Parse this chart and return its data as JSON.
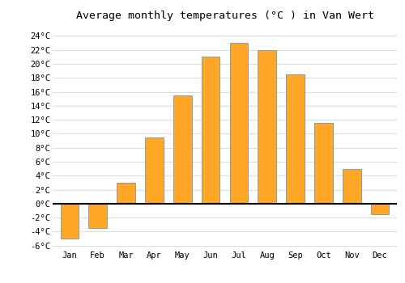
{
  "months": [
    "Jan",
    "Feb",
    "Mar",
    "Apr",
    "May",
    "Jun",
    "Jul",
    "Aug",
    "Sep",
    "Oct",
    "Nov",
    "Dec"
  ],
  "values": [
    -5.0,
    -3.5,
    3.0,
    9.5,
    15.5,
    21.0,
    23.0,
    22.0,
    18.5,
    11.5,
    5.0,
    -1.5
  ],
  "bar_color": "#FFA726",
  "bar_edge_color": "#999999",
  "title": "Average monthly temperatures (°C ) in Van Wert",
  "ylim": [
    -6.5,
    25.5
  ],
  "yticks": [
    -6,
    -4,
    -2,
    0,
    2,
    4,
    6,
    8,
    10,
    12,
    14,
    16,
    18,
    20,
    22,
    24
  ],
  "ytick_labels": [
    "-6°C",
    "-4°C",
    "-2°C",
    "0°C",
    "2°C",
    "4°C",
    "6°C",
    "8°C",
    "10°C",
    "12°C",
    "14°C",
    "16°C",
    "18°C",
    "20°C",
    "22°C",
    "24°C"
  ],
  "background_color": "#ffffff",
  "grid_color": "#dddddd",
  "title_fontsize": 9.5,
  "tick_fontsize": 7.5,
  "bar_width": 0.65
}
